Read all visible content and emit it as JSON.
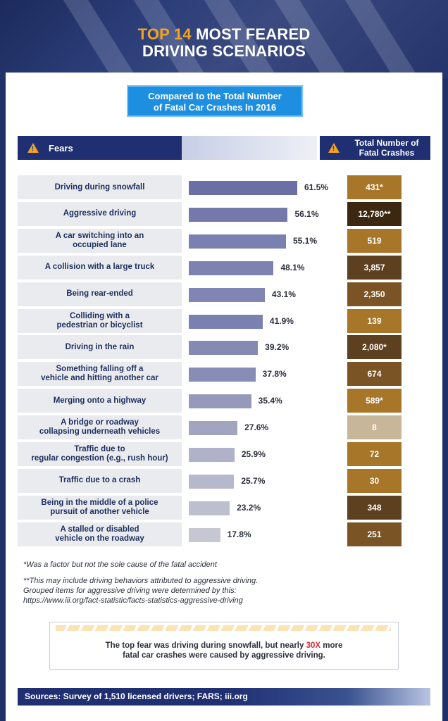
{
  "title": {
    "accent": "TOP 14",
    "line1_rest": " MOST FEARED",
    "line2": "DRIVING SCENARIOS"
  },
  "subtitle": {
    "line1": "Compared to the Total Number",
    "line2": "of Fatal Car Crashes In 2016"
  },
  "headers": {
    "fears": "Fears",
    "total_line1": "Total Number of",
    "total_line2": "Fatal Crashes"
  },
  "chart_data": {
    "type": "bar",
    "title": "Top 14 Most Feared Driving Scenarios",
    "subtitle": "Compared to the Total Number of Fatal Car Crashes In 2016",
    "orientation": "horizontal",
    "xlim": [
      0,
      70
    ],
    "categories": [
      [
        "Driving during snowfall"
      ],
      [
        "Aggressive driving"
      ],
      [
        "A car switching into an",
        "occupied lane"
      ],
      [
        "A collision with a large truck"
      ],
      [
        "Being rear-ended"
      ],
      [
        "Colliding with a",
        "pedestrian or bicyclist"
      ],
      [
        "Driving in the rain"
      ],
      [
        "Something falling off a",
        "vehicle and hitting another car"
      ],
      [
        "Merging onto a highway"
      ],
      [
        "A bridge or roadway",
        "collapsing underneath vehicles"
      ],
      [
        "Traffic due to",
        "regular congestion (e.g., rush hour)"
      ],
      [
        "Traffic due to a crash"
      ],
      [
        "Being in the middle of a police",
        "pursuit of another vehicle"
      ],
      [
        "A stalled or disabled",
        "vehicle on the roadway"
      ]
    ],
    "values": [
      61.5,
      56.1,
      55.1,
      48.1,
      43.1,
      41.9,
      39.2,
      37.8,
      35.4,
      27.6,
      25.9,
      25.7,
      23.2,
      17.8
    ],
    "value_labels": [
      "61.5%",
      "56.1%",
      "55.1%",
      "48.1%",
      "43.1%",
      "41.9%",
      "39.2%",
      "37.8%",
      "35.4%",
      "27.6%",
      "25.9%",
      "25.7%",
      "23.2%",
      "17.8%"
    ],
    "bar_colors": [
      "#6a70a6",
      "#7379ab",
      "#7a80b0",
      "#7d82b0",
      "#8086b3",
      "#7a80b0",
      "#858ab4",
      "#888db6",
      "#9699bc",
      "#a2a5c0",
      "#afb2c8",
      "#b6b8cb",
      "#bdbfcf",
      "#c5c7d3"
    ],
    "fatal_crashes": [
      "431*",
      "12,780**",
      "519",
      "3,857",
      "2,350",
      "139",
      "2,080*",
      "674",
      "589*",
      "8",
      "72",
      "30",
      "348",
      "251"
    ],
    "crash_colors": [
      "#a87628",
      "#3c2810",
      "#a87628",
      "#5c4020",
      "#7a5424",
      "#a87628",
      "#5c4020",
      "#7a5424",
      "#a87628",
      "#c8b69a",
      "#a87628",
      "#a87628",
      "#5c4020",
      "#7a5424"
    ]
  },
  "footnotes": {
    "note1": "*Was a factor but not the sole cause of the fatal accident",
    "note2_line1": "**This may include driving behaviors attributed to aggressive driving.",
    "note2_line2": "Grouped items for aggressive driving were determined by this:",
    "note2_line3": "https://www.iii.org/fact-statistic/facts-statistics-aggressive-driving"
  },
  "callout": {
    "line1_before": "The top fear was driving during snowfall, but nearly ",
    "highlight": "30X",
    "line1_after": " more",
    "line2": "fatal car crashes were caused by aggressive driving."
  },
  "sources": "Sources: Survey of 1,510 licensed drivers; FARS; iii.org",
  "colors": {
    "navy": "#1f2f72",
    "accent_orange": "#f4a321",
    "callout_red": "#d52f2f",
    "subtitle_blue": "#1e8fe0"
  }
}
